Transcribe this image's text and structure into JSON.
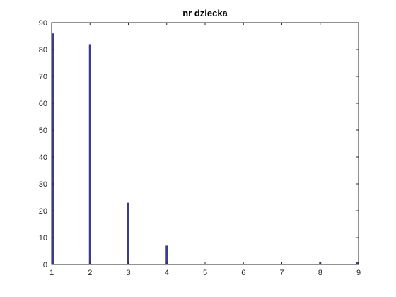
{
  "chart_data": {
    "type": "bar",
    "title": "nr dziecka",
    "xlabel": "",
    "ylabel": "",
    "x": [
      1,
      2,
      3,
      4,
      5,
      6,
      7,
      8,
      9
    ],
    "values": [
      86,
      82,
      23,
      7,
      0,
      0,
      0,
      1,
      1
    ],
    "xlim": [
      1,
      9
    ],
    "ylim": [
      0,
      90
    ],
    "xticks": [
      1,
      2,
      3,
      4,
      5,
      6,
      7,
      8,
      9
    ],
    "yticks": [
      0,
      10,
      20,
      30,
      40,
      50,
      60,
      70,
      80,
      90
    ],
    "grid": false,
    "bar_color": "#3b3b8f",
    "axis_color": "#262626"
  }
}
